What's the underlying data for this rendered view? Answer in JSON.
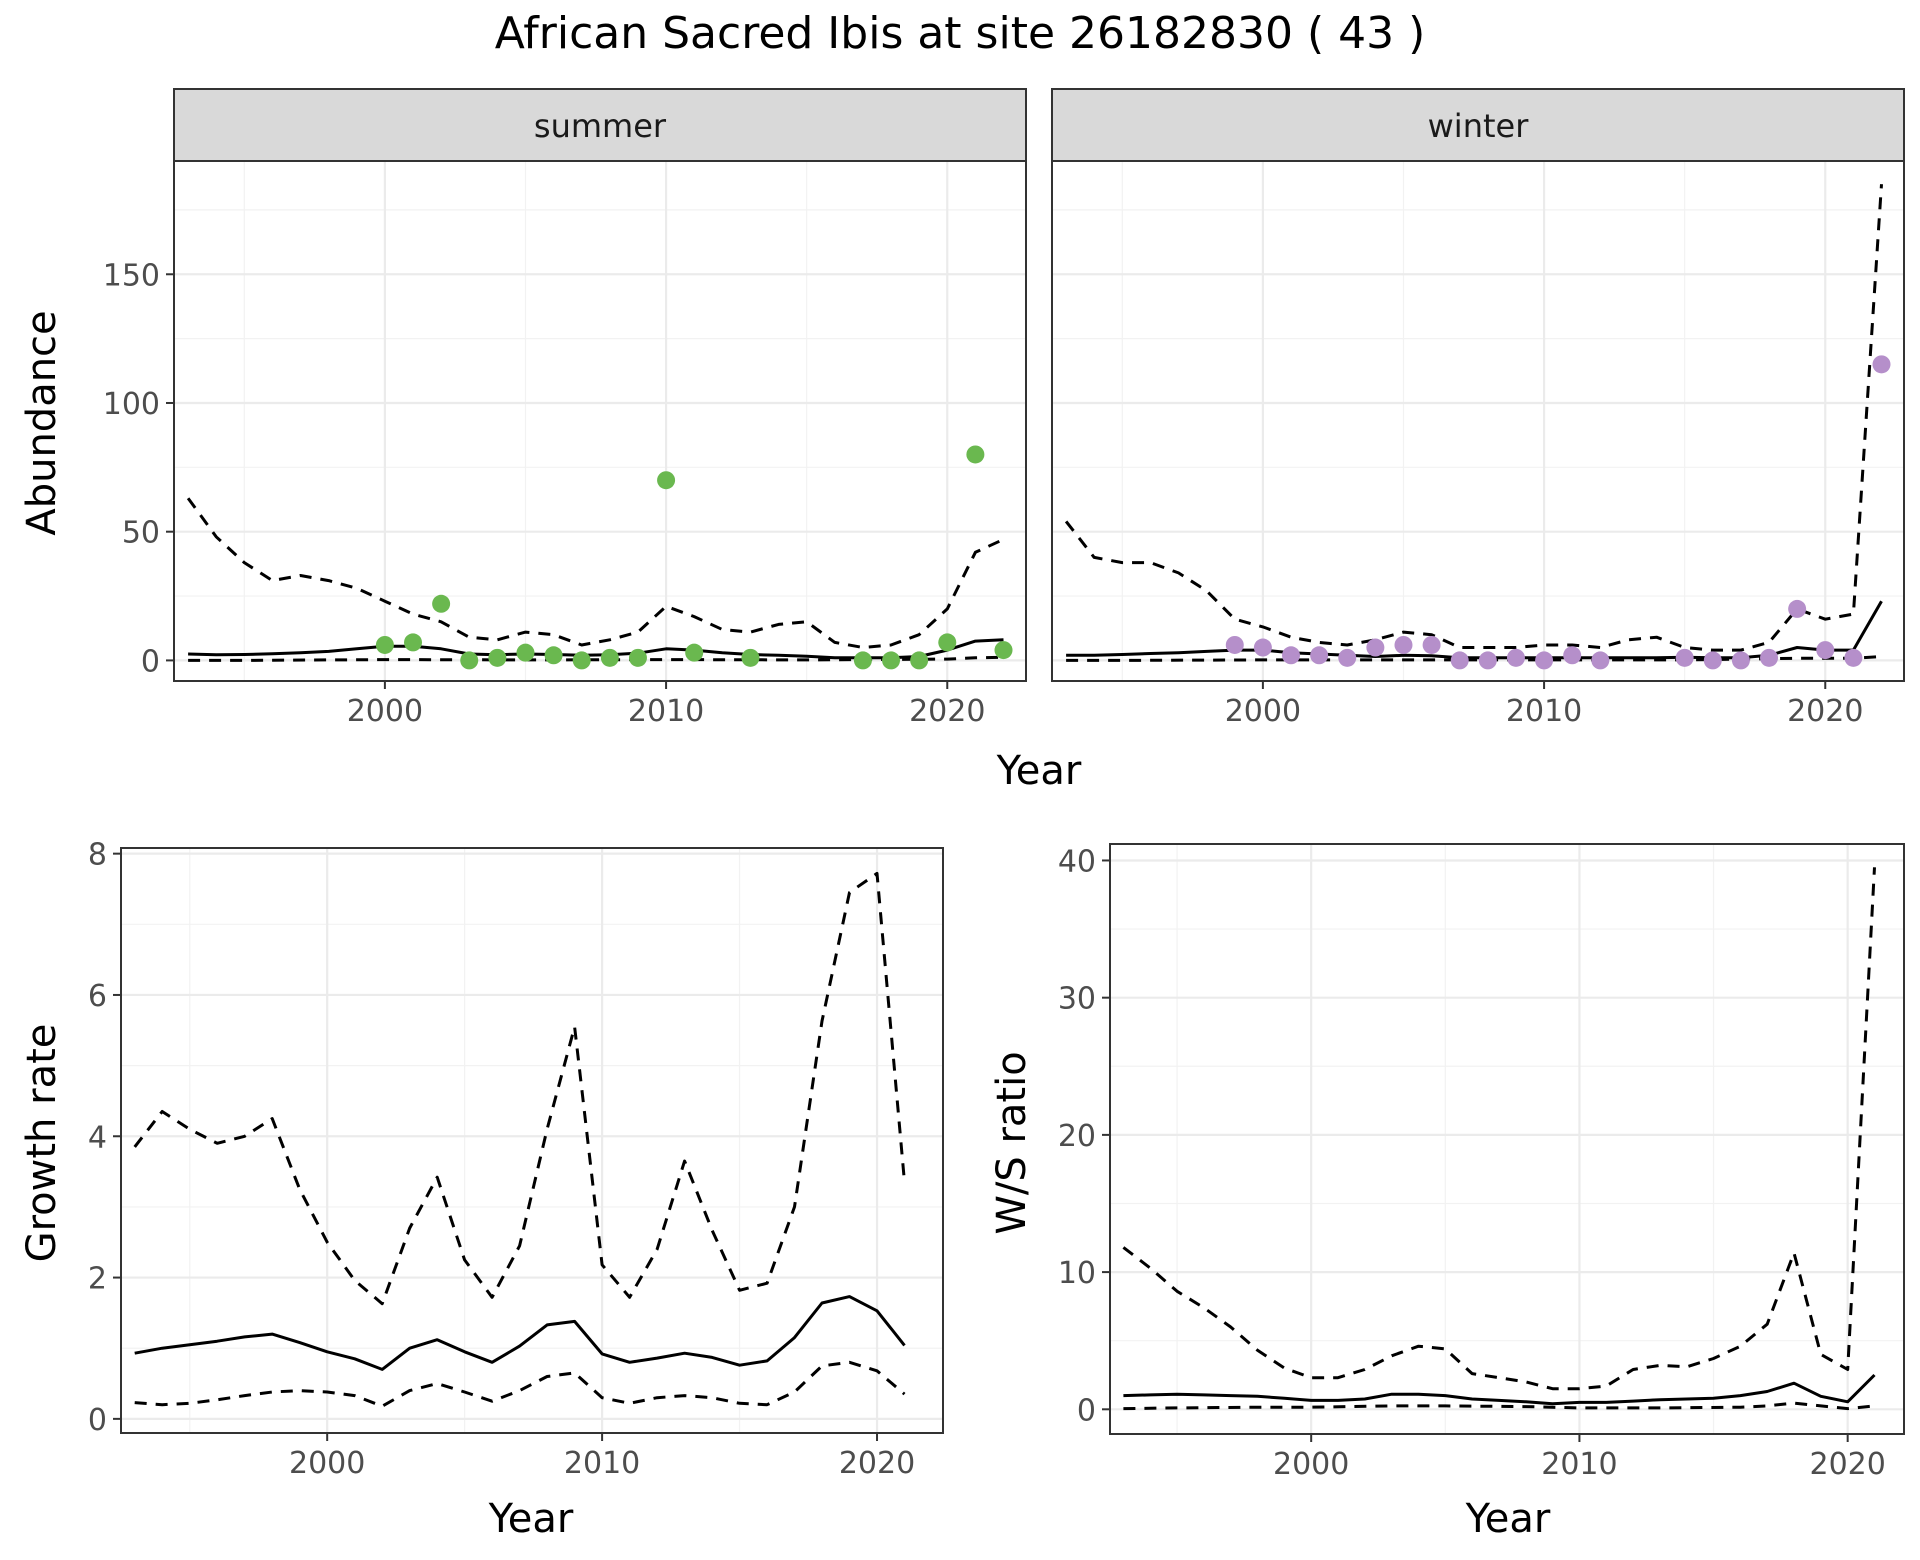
{
  "title": "African Sacred Ibis at site 26182830 ( 43 )",
  "colors": {
    "summer_points": "#6ab84f",
    "winter_points": "#b58fca",
    "lines": "#000000"
  },
  "chart_data": [
    {
      "type": "line",
      "facet": "summer",
      "xlabel": "Year",
      "ylabel": "Abundance",
      "xlim": [
        1992.5,
        2022.8
      ],
      "ylim": [
        -8,
        194
      ],
      "x_ticks": [
        2000,
        2010,
        2020
      ],
      "y_ticks": [
        0,
        50,
        100,
        150
      ],
      "grid": true,
      "series": [
        {
          "style": "solid",
          "x": [
            1993,
            1994,
            1995,
            1996,
            1997,
            1998,
            1999,
            2000,
            2001,
            2002,
            2003,
            2004,
            2005,
            2006,
            2007,
            2008,
            2009,
            2010,
            2011,
            2012,
            2013,
            2014,
            2015,
            2016,
            2017,
            2018,
            2019,
            2020,
            2021,
            2022
          ],
          "y": [
            2.5,
            2.2,
            2.3,
            2.6,
            3,
            3.5,
            4.5,
            5.5,
            5.5,
            4.5,
            2.5,
            2.2,
            2.5,
            2.3,
            2,
            2.2,
            2.8,
            4.5,
            4,
            3,
            2.3,
            2,
            1.6,
            1,
            1,
            1,
            1.5,
            4,
            7.5,
            8
          ]
        },
        {
          "style": "dashed",
          "x": [
            1993,
            1994,
            1995,
            1996,
            1997,
            1998,
            1999,
            2000,
            2001,
            2002,
            2003,
            2004,
            2005,
            2006,
            2007,
            2008,
            2009,
            2010,
            2011,
            2012,
            2013,
            2014,
            2015,
            2016,
            2017,
            2018,
            2019,
            2020,
            2021,
            2022
          ],
          "y": [
            63,
            48,
            38,
            31,
            33,
            31,
            28,
            23,
            18,
            15,
            9,
            8,
            11,
            10,
            6,
            8,
            11,
            21,
            17,
            12,
            11,
            14,
            15,
            7,
            5,
            6,
            10,
            20,
            42,
            47
          ]
        },
        {
          "style": "dashed",
          "x": [
            1993,
            1995,
            2000,
            2005,
            2010,
            2015,
            2020,
            2021,
            2022
          ],
          "y": [
            0,
            0,
            0.3,
            0.2,
            0.3,
            0.2,
            0.5,
            1,
            1.2
          ]
        },
        {
          "style": "points",
          "x": [
            2000,
            2001,
            2002,
            2003,
            2004,
            2005,
            2006,
            2007,
            2008,
            2009,
            2010,
            2011,
            2013,
            2017,
            2018,
            2019,
            2020,
            2021,
            2022
          ],
          "y": [
            6,
            7,
            22,
            0,
            1,
            3,
            2,
            0,
            1,
            1,
            70,
            3,
            1,
            0,
            0,
            0,
            7,
            80,
            4
          ]
        }
      ]
    },
    {
      "type": "line",
      "facet": "winter",
      "xlabel": "Year",
      "ylabel": "Abundance",
      "xlim": [
        1992.5,
        2022.8
      ],
      "ylim": [
        -8,
        194
      ],
      "x_ticks": [
        2000,
        2010,
        2020
      ],
      "y_ticks": [
        0,
        50,
        100,
        150
      ],
      "grid": true,
      "series": [
        {
          "style": "solid",
          "x": [
            1993,
            1994,
            1995,
            1996,
            1997,
            1998,
            1999,
            2000,
            2001,
            2002,
            2003,
            2004,
            2005,
            2006,
            2007,
            2008,
            2009,
            2010,
            2011,
            2012,
            2013,
            2014,
            2015,
            2016,
            2017,
            2018,
            2019,
            2020,
            2021,
            2022
          ],
          "y": [
            2,
            2,
            2.3,
            2.7,
            3,
            3.5,
            4,
            4,
            3,
            2.5,
            2,
            1.5,
            2,
            1.8,
            1,
            1,
            1,
            1,
            1,
            1,
            1,
            1,
            1.2,
            1,
            1,
            2,
            5,
            4,
            4,
            23
          ]
        },
        {
          "style": "dashed",
          "x": [
            1993,
            1994,
            1995,
            1996,
            1997,
            1998,
            1999,
            2000,
            2001,
            2002,
            2003,
            2004,
            2005,
            2006,
            2007,
            2008,
            2009,
            2010,
            2011,
            2012,
            2013,
            2014,
            2015,
            2016,
            2017,
            2018,
            2019,
            2020,
            2021,
            2022
          ],
          "y": [
            54,
            40,
            38,
            38,
            34,
            27,
            16,
            13,
            9,
            7,
            6,
            8,
            11,
            10,
            5,
            5,
            5,
            6,
            6,
            5,
            8,
            9,
            5,
            4,
            4,
            7,
            20,
            16,
            18,
            185
          ]
        },
        {
          "style": "dashed",
          "x": [
            1993,
            1995,
            2000,
            2005,
            2010,
            2015,
            2019,
            2020,
            2021,
            2022
          ],
          "y": [
            0,
            0,
            0.2,
            0.2,
            0.2,
            0.2,
            0.8,
            0.8,
            0.8,
            1.5
          ]
        },
        {
          "style": "points",
          "x": [
            1999,
            2000,
            2001,
            2002,
            2003,
            2004,
            2005,
            2006,
            2007,
            2008,
            2009,
            2010,
            2011,
            2012,
            2015,
            2016,
            2017,
            2018,
            2019,
            2020,
            2021,
            2022
          ],
          "y": [
            6,
            5,
            2,
            2,
            1,
            5,
            6,
            6,
            0,
            0,
            1,
            0,
            2,
            0,
            1,
            0,
            0,
            1,
            20,
            4,
            1,
            115
          ]
        }
      ]
    },
    {
      "type": "line",
      "xlabel": "Year",
      "ylabel": "Growth rate",
      "xlim": [
        1992.5,
        2022.4
      ],
      "ylim": [
        -0.2,
        8.08
      ],
      "x_ticks": [
        2000,
        2010,
        2020
      ],
      "y_ticks": [
        0,
        2,
        4,
        6,
        8
      ],
      "grid": true,
      "series": [
        {
          "style": "solid",
          "x": [
            1993,
            1994,
            1995,
            1996,
            1997,
            1998,
            1999,
            2000,
            2001,
            2002,
            2003,
            2004,
            2005,
            2006,
            2007,
            2008,
            2009,
            2010,
            2011,
            2012,
            2013,
            2014,
            2015,
            2016,
            2017,
            2018,
            2019,
            2020,
            2021
          ],
          "y": [
            0.93,
            1,
            1.05,
            1.1,
            1.16,
            1.2,
            1.08,
            0.95,
            0.85,
            0.7,
            1,
            1.12,
            0.95,
            0.8,
            1.03,
            1.33,
            1.38,
            0.92,
            0.8,
            0.86,
            0.93,
            0.87,
            0.76,
            0.82,
            1.15,
            1.64,
            1.73,
            1.53,
            1.04
          ]
        },
        {
          "style": "dashed",
          "x": [
            1993,
            1994,
            1995,
            1996,
            1997,
            1998,
            1999,
            2000,
            2001,
            2002,
            2003,
            2004,
            2005,
            2006,
            2007,
            2008,
            2009,
            2010,
            2011,
            2012,
            2013,
            2014,
            2015,
            2016,
            2017,
            2018,
            2019,
            2020,
            2021
          ],
          "y": [
            3.85,
            4.35,
            4.1,
            3.9,
            4,
            4.25,
            3.25,
            2.5,
            1.96,
            1.63,
            2.7,
            3.42,
            2.25,
            1.72,
            2.45,
            4.1,
            5.55,
            2.18,
            1.72,
            2.4,
            3.65,
            2.67,
            1.82,
            1.92,
            3,
            5.63,
            7.45,
            7.72,
            3.35
          ]
        },
        {
          "style": "dashed",
          "x": [
            1993,
            1994,
            1995,
            1996,
            1997,
            1998,
            1999,
            2000,
            2001,
            2002,
            2003,
            2004,
            2005,
            2006,
            2007,
            2008,
            2009,
            2010,
            2011,
            2012,
            2013,
            2014,
            2015,
            2016,
            2017,
            2018,
            2019,
            2020,
            2021
          ],
          "y": [
            0.23,
            0.2,
            0.22,
            0.27,
            0.33,
            0.38,
            0.4,
            0.38,
            0.33,
            0.18,
            0.4,
            0.5,
            0.38,
            0.25,
            0.4,
            0.6,
            0.65,
            0.3,
            0.22,
            0.3,
            0.33,
            0.3,
            0.22,
            0.2,
            0.38,
            0.75,
            0.8,
            0.68,
            0.35
          ]
        }
      ]
    },
    {
      "type": "line",
      "xlabel": "Year",
      "ylabel": "W/S ratio",
      "xlim": [
        1992.5,
        2022.1
      ],
      "ylim": [
        -1.8,
        41.2
      ],
      "x_ticks": [
        2000,
        2010,
        2020
      ],
      "y_ticks": [
        0,
        10,
        20,
        30,
        40
      ],
      "grid": true,
      "series": [
        {
          "style": "solid",
          "x": [
            1993,
            1994,
            1995,
            1996,
            1997,
            1998,
            1999,
            2000,
            2001,
            2002,
            2003,
            2004,
            2005,
            2006,
            2007,
            2008,
            2009,
            2010,
            2011,
            2012,
            2013,
            2014,
            2015,
            2016,
            2017,
            2018,
            2019,
            2020,
            2021
          ],
          "y": [
            1,
            1.05,
            1.1,
            1.05,
            1,
            0.95,
            0.8,
            0.65,
            0.65,
            0.75,
            1.1,
            1.1,
            1,
            0.75,
            0.65,
            0.55,
            0.4,
            0.5,
            0.5,
            0.6,
            0.7,
            0.75,
            0.8,
            1,
            1.3,
            1.9,
            0.95,
            0.55,
            2.5
          ]
        },
        {
          "style": "dashed",
          "x": [
            1993,
            1994,
            1995,
            1996,
            1997,
            1998,
            1999,
            2000,
            2001,
            2002,
            2003,
            2004,
            2005,
            2006,
            2007,
            2008,
            2009,
            2010,
            2011,
            2012,
            2013,
            2014,
            2015,
            2016,
            2017,
            2018,
            2019,
            2020,
            2021
          ],
          "y": [
            11.8,
            10.3,
            8.6,
            7.4,
            6,
            4.3,
            3,
            2.3,
            2.3,
            2.9,
            3.9,
            4.6,
            4.4,
            2.6,
            2.3,
            2,
            1.5,
            1.5,
            1.7,
            2.9,
            3.2,
            3.1,
            3.7,
            4.6,
            6.2,
            11.4,
            4,
            2.9,
            39.5
          ]
        },
        {
          "style": "dashed",
          "x": [
            1993,
            1995,
            1998,
            2000,
            2003,
            2005,
            2008,
            2010,
            2013,
            2016,
            2017,
            2018,
            2019,
            2020,
            2021
          ],
          "y": [
            0.05,
            0.1,
            0.15,
            0.15,
            0.25,
            0.25,
            0.2,
            0.1,
            0.1,
            0.15,
            0.25,
            0.45,
            0.25,
            0.05,
            0.25
          ]
        }
      ]
    }
  ]
}
